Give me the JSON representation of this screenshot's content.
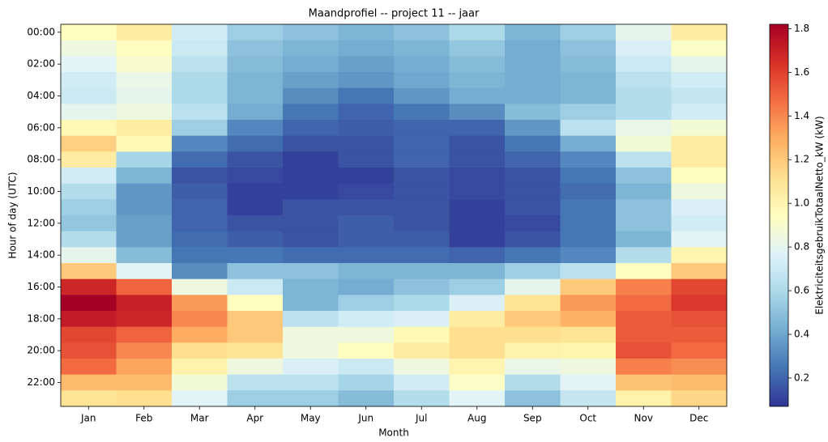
{
  "chart_data": {
    "type": "heatmap",
    "title": "Maandprofiel -- project 11 -- jaar",
    "x_label": "Month",
    "y_label": "Hour of day (UTC)",
    "colorbar_label": "ElektriciteitsgebruikTotaalNetto_kW (kW)",
    "categories": [
      "Jan",
      "Feb",
      "Mar",
      "Apr",
      "May",
      "Jun",
      "Jul",
      "Aug",
      "Sep",
      "Oct",
      "Nov",
      "Dec"
    ],
    "rows": [
      "00:00",
      null,
      "02:00",
      null,
      "04:00",
      null,
      "06:00",
      null,
      "08:00",
      null,
      "10:00",
      null,
      "12:00",
      null,
      "14:00",
      null,
      "16:00",
      null,
      "18:00",
      null,
      "20:00",
      null,
      "22:00",
      null
    ],
    "values": [
      [
        0.95,
        1.05,
        0.72,
        0.55,
        0.5,
        0.45,
        0.5,
        0.6,
        0.45,
        0.55,
        0.8,
        1.05
      ],
      [
        0.85,
        0.95,
        0.7,
        0.5,
        0.45,
        0.42,
        0.45,
        0.52,
        0.42,
        0.5,
        0.75,
        0.92
      ],
      [
        0.78,
        0.9,
        0.65,
        0.48,
        0.42,
        0.38,
        0.42,
        0.48,
        0.42,
        0.48,
        0.7,
        0.8
      ],
      [
        0.72,
        0.82,
        0.6,
        0.45,
        0.38,
        0.35,
        0.4,
        0.45,
        0.42,
        0.45,
        0.65,
        0.72
      ],
      [
        0.7,
        0.8,
        0.6,
        0.45,
        0.32,
        0.25,
        0.35,
        0.42,
        0.42,
        0.45,
        0.62,
        0.68
      ],
      [
        0.8,
        0.85,
        0.65,
        0.42,
        0.25,
        0.2,
        0.25,
        0.32,
        0.48,
        0.55,
        0.62,
        0.72
      ],
      [
        0.98,
        1.05,
        0.55,
        0.3,
        0.2,
        0.18,
        0.2,
        0.2,
        0.35,
        0.65,
        0.82,
        0.88
      ],
      [
        1.18,
        0.98,
        0.3,
        0.22,
        0.15,
        0.15,
        0.2,
        0.15,
        0.25,
        0.42,
        0.88,
        1.05
      ],
      [
        1.05,
        0.58,
        0.22,
        0.15,
        0.1,
        0.15,
        0.2,
        0.15,
        0.2,
        0.3,
        0.65,
        1.05
      ],
      [
        0.72,
        0.45,
        0.15,
        0.12,
        0.1,
        0.1,
        0.15,
        0.12,
        0.15,
        0.25,
        0.5,
        0.95
      ],
      [
        0.62,
        0.35,
        0.18,
        0.1,
        0.1,
        0.12,
        0.15,
        0.12,
        0.15,
        0.22,
        0.45,
        0.85
      ],
      [
        0.55,
        0.35,
        0.2,
        0.1,
        0.15,
        0.15,
        0.15,
        0.1,
        0.15,
        0.25,
        0.5,
        0.75
      ],
      [
        0.52,
        0.38,
        0.2,
        0.15,
        0.15,
        0.18,
        0.15,
        0.1,
        0.12,
        0.25,
        0.5,
        0.72
      ],
      [
        0.62,
        0.38,
        0.22,
        0.18,
        0.15,
        0.18,
        0.18,
        0.1,
        0.15,
        0.25,
        0.45,
        0.78
      ],
      [
        0.8,
        0.48,
        0.25,
        0.25,
        0.22,
        0.22,
        0.22,
        0.2,
        0.25,
        0.3,
        0.62,
        1.0
      ],
      [
        1.2,
        0.78,
        0.32,
        0.5,
        0.5,
        0.45,
        0.45,
        0.45,
        0.55,
        0.65,
        0.95,
        1.2
      ],
      [
        1.68,
        1.5,
        0.85,
        0.7,
        0.45,
        0.42,
        0.5,
        0.55,
        0.8,
        1.2,
        1.42,
        1.58
      ],
      [
        1.82,
        1.7,
        1.35,
        0.95,
        0.45,
        0.55,
        0.6,
        0.75,
        1.1,
        1.35,
        1.48,
        1.62
      ],
      [
        1.72,
        1.68,
        1.4,
        1.2,
        0.65,
        0.72,
        0.75,
        1.05,
        1.2,
        1.28,
        1.52,
        1.55
      ],
      [
        1.58,
        1.5,
        1.3,
        1.2,
        0.85,
        0.85,
        0.98,
        1.12,
        1.12,
        1.1,
        1.52,
        1.52
      ],
      [
        1.55,
        1.4,
        1.12,
        1.1,
        0.85,
        0.95,
        1.05,
        1.12,
        1.02,
        1.0,
        1.55,
        1.48
      ],
      [
        1.48,
        1.32,
        1.02,
        0.85,
        0.75,
        0.7,
        0.85,
        1.0,
        0.82,
        0.85,
        1.42,
        1.38
      ],
      [
        1.25,
        1.25,
        0.88,
        0.65,
        0.65,
        0.58,
        0.72,
        0.92,
        0.62,
        0.78,
        1.22,
        1.25
      ],
      [
        1.1,
        1.12,
        0.78,
        0.55,
        0.55,
        0.48,
        0.62,
        0.78,
        0.5,
        0.68,
        1.02,
        1.15
      ]
    ],
    "zlim": [
      0.07,
      1.82
    ],
    "zticks": [
      0.2,
      0.4,
      0.6,
      0.8,
      {
        "value": 1,
        "label": "1.0"
      },
      1.2,
      1.4,
      1.6,
      1.8
    ],
    "colormap": [
      "#313695",
      "#4575b4",
      "#74add1",
      "#abd9e9",
      "#e0f3f8",
      "#ffffbf",
      "#fee090",
      "#fdae61",
      "#f46d43",
      "#d73027",
      "#a50026"
    ]
  }
}
